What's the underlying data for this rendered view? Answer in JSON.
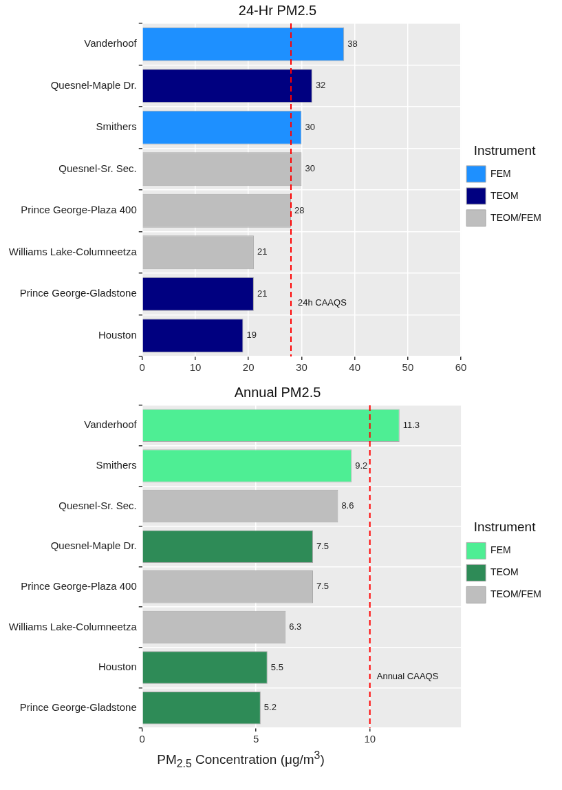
{
  "chart_data": [
    {
      "type": "bar",
      "title": "24-Hr PM2.5",
      "orientation": "horizontal",
      "stacked": true,
      "categories": [
        "Vanderhoof",
        "Quesnel-Maple Dr.",
        "Smithers",
        "Quesnel-Sr. Sec.",
        "Prince George-Plaza 400",
        "Williams Lake-Columneetza",
        "Prince George-Gladstone",
        "Houston"
      ],
      "series": [
        {
          "name": "FEM",
          "color": "#1e90ff",
          "values": [
            38,
            null,
            30,
            null,
            null,
            null,
            null,
            null
          ]
        },
        {
          "name": "TEOM",
          "color": "#000080",
          "values": [
            null,
            32,
            null,
            null,
            null,
            null,
            21,
            19
          ]
        },
        {
          "name": "TEOM/FEM",
          "color": "#bebebe",
          "values": [
            null,
            null,
            null,
            30,
            28,
            21,
            null,
            null
          ]
        }
      ],
      "xlim": [
        0,
        60
      ],
      "xticks": [
        0,
        10,
        20,
        30,
        40,
        50,
        60
      ],
      "grid": true,
      "legend": "right",
      "legend_title": "Instrument",
      "data_labels": true,
      "ref_lines": [
        {
          "axis": "x",
          "value": 28,
          "label": "24h CAAQS",
          "color": "#ff0000",
          "line_style": "dashed"
        }
      ]
    },
    {
      "type": "bar",
      "title": "Annual PM2.5",
      "orientation": "horizontal",
      "stacked": true,
      "categories": [
        "Vanderhoof",
        "Smithers",
        "Quesnel-Sr. Sec.",
        "Quesnel-Maple Dr.",
        "Prince George-Plaza 400",
        "Williams Lake-Columneetza",
        "Houston",
        "Prince George-Gladstone"
      ],
      "series": [
        {
          "name": "FEM",
          "color": "#4eee94",
          "values": [
            11.3,
            9.2,
            null,
            null,
            null,
            null,
            null,
            null
          ]
        },
        {
          "name": "TEOM",
          "color": "#2e8b57",
          "values": [
            null,
            null,
            null,
            7.5,
            null,
            null,
            5.5,
            5.2
          ]
        },
        {
          "name": "TEOM/FEM",
          "color": "#bebebe",
          "values": [
            null,
            null,
            8.6,
            null,
            7.5,
            6.3,
            null,
            null
          ]
        }
      ],
      "xlim": [
        0,
        14
      ],
      "xticks": [
        0,
        5,
        10
      ],
      "xlabel": "PM$_{2.5}$ Concentration (μg/m$^{3}$)",
      "grid": true,
      "legend": "right",
      "legend_title": "Instrument",
      "data_labels": true,
      "ref_lines": [
        {
          "axis": "x",
          "value": 10,
          "label": "Annual CAAQS",
          "color": "#ff0000",
          "line_style": "dashed"
        }
      ]
    }
  ]
}
